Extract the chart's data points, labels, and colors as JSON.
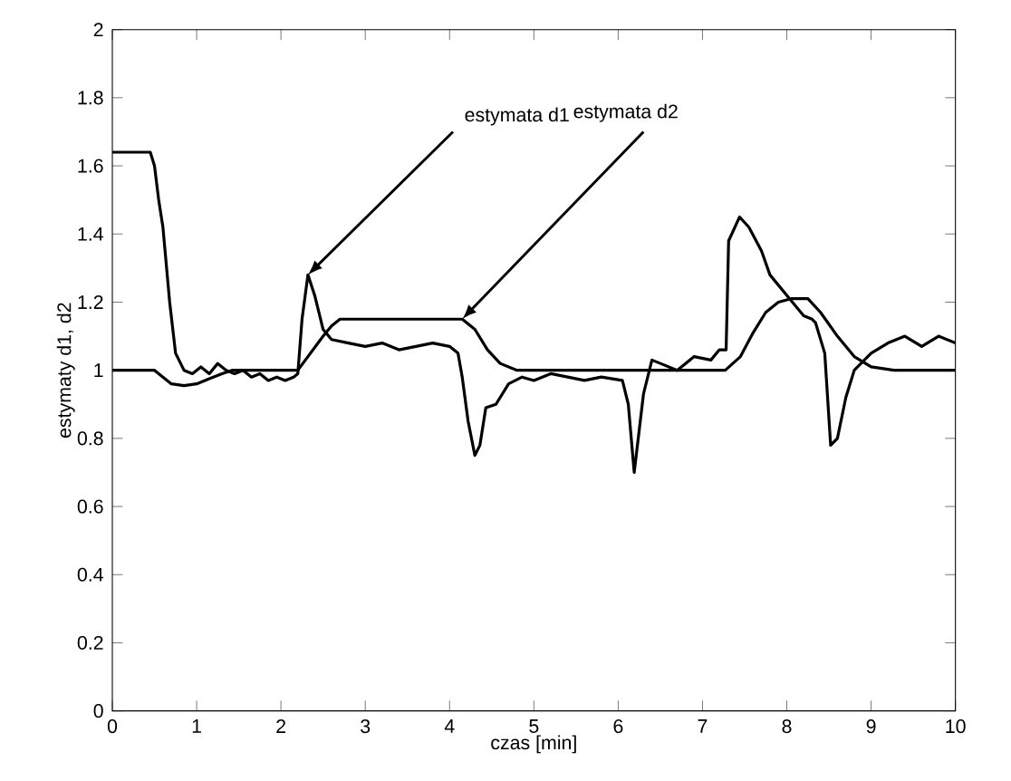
{
  "chart_data": {
    "type": "line",
    "xlabel": "czas [min]",
    "ylabel": "estymaty d1, d2",
    "xlim": [
      0,
      10
    ],
    "ylim": [
      0,
      2
    ],
    "xticks": [
      0,
      1,
      2,
      3,
      4,
      5,
      6,
      7,
      8,
      9,
      10
    ],
    "yticks": [
      0,
      0.2,
      0.4,
      0.6,
      0.8,
      1,
      1.2,
      1.4,
      1.6,
      1.8,
      2
    ],
    "marker": "none",
    "line_style": "solid",
    "annotations": [
      {
        "text": "estymata d1",
        "x": 2.32,
        "y": 1.28
      },
      {
        "text": "estymata d2",
        "x": 4.15,
        "y": 1.15
      }
    ],
    "series": [
      {
        "color": "#000000",
        "x": [
          0,
          0.45,
          0.5,
          0.55,
          0.6,
          0.68,
          0.75,
          0.85,
          0.95,
          1.05,
          1.15,
          1.25,
          1.35,
          1.45,
          1.55,
          1.65,
          1.75,
          1.85,
          1.95,
          2.05,
          2.15,
          2.2,
          2.25,
          2.32,
          2.4,
          2.5,
          2.6,
          2.8,
          3.0,
          3.2,
          3.4,
          3.6,
          3.8,
          4.0,
          4.1,
          4.15,
          4.22,
          4.3,
          4.36,
          4.43,
          4.55,
          4.7,
          4.86,
          5.0,
          5.2,
          5.4,
          5.6,
          5.8,
          6.05,
          6.12,
          6.19,
          6.3,
          6.4,
          6.5,
          6.7,
          6.9,
          7.1,
          7.2,
          7.28,
          7.31,
          7.44,
          7.55,
          7.7,
          7.8,
          8.0,
          8.2,
          8.3,
          8.34,
          8.45,
          8.52,
          8.6,
          8.7,
          8.8,
          9.0,
          9.2,
          9.4,
          9.6,
          9.8,
          10
        ],
        "values": [
          1.64,
          1.64,
          1.6,
          1.5,
          1.42,
          1.2,
          1.05,
          1.0,
          0.99,
          1.01,
          0.99,
          1.02,
          1.0,
          0.99,
          1.0,
          0.98,
          0.99,
          0.97,
          0.98,
          0.97,
          0.98,
          0.99,
          1.15,
          1.28,
          1.22,
          1.12,
          1.09,
          1.08,
          1.07,
          1.08,
          1.06,
          1.07,
          1.08,
          1.07,
          1.05,
          0.98,
          0.85,
          0.75,
          0.78,
          0.89,
          0.9,
          0.96,
          0.98,
          0.97,
          0.99,
          0.98,
          0.97,
          0.98,
          0.97,
          0.9,
          0.7,
          0.93,
          1.03,
          1.02,
          1.0,
          1.04,
          1.03,
          1.06,
          1.06,
          1.38,
          1.45,
          1.42,
          1.35,
          1.28,
          1.22,
          1.16,
          1.15,
          1.14,
          1.05,
          0.78,
          0.8,
          0.92,
          1.0,
          1.05,
          1.08,
          1.1,
          1.07,
          1.1,
          1.08
        ]
      },
      {
        "color": "#000000",
        "x": [
          0,
          0.5,
          0.6,
          0.7,
          0.85,
          1.0,
          1.15,
          1.3,
          1.42,
          2.2,
          2.35,
          2.5,
          2.6,
          2.7,
          3.0,
          3.5,
          4.15,
          4.3,
          4.45,
          4.6,
          4.8,
          5.0,
          6.0,
          7.27,
          7.45,
          7.6,
          7.75,
          7.9,
          8.05,
          8.25,
          8.4,
          8.6,
          8.8,
          9.0,
          9.27,
          10
        ],
        "values": [
          1.0,
          1.0,
          0.98,
          0.96,
          0.955,
          0.96,
          0.975,
          0.99,
          1.0,
          1.0,
          1.05,
          1.1,
          1.13,
          1.15,
          1.15,
          1.15,
          1.15,
          1.12,
          1.06,
          1.02,
          1.0,
          1.0,
          1.0,
          1.0,
          1.04,
          1.11,
          1.17,
          1.2,
          1.21,
          1.21,
          1.17,
          1.1,
          1.04,
          1.01,
          1.0,
          1.0
        ]
      }
    ]
  }
}
